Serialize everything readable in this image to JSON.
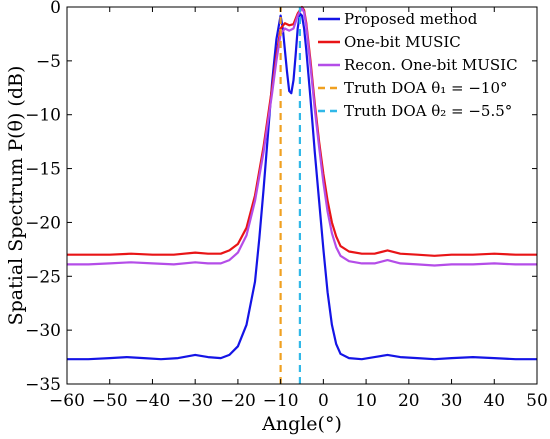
{
  "chart_data": {
    "type": "line",
    "xlabel": "Angle(°)",
    "ylabel": "Spatial Spectrum P(θ) (dB)",
    "xlim": [
      -60,
      50
    ],
    "ylim": [
      -35,
      0
    ],
    "xticks": [
      -60,
      -50,
      -40,
      -30,
      -20,
      -10,
      0,
      10,
      20,
      30,
      40,
      50
    ],
    "yticks": [
      0,
      -5,
      -10,
      -15,
      -20,
      -25,
      -30,
      -35
    ],
    "xtick_labels": [
      "−60",
      "−50",
      "−40",
      "−30",
      "−20",
      "−10",
      "0",
      "10",
      "20",
      "30",
      "40",
      "50"
    ],
    "ytick_labels": [
      "0",
      "−5",
      "−10",
      "−15",
      "−20",
      "−25",
      "−30",
      "−35"
    ],
    "grid": false,
    "legend_position": "top-right",
    "series": [
      {
        "name": "Proposed method",
        "color": "#1414e6",
        "style": "solid",
        "points": [
          [
            -60,
            -32.7
          ],
          [
            -55,
            -32.7
          ],
          [
            -50,
            -32.6
          ],
          [
            -46,
            -32.5
          ],
          [
            -42,
            -32.6
          ],
          [
            -38,
            -32.7
          ],
          [
            -34,
            -32.6
          ],
          [
            -30,
            -32.3
          ],
          [
            -27,
            -32.5
          ],
          [
            -24,
            -32.6
          ],
          [
            -22,
            -32.3
          ],
          [
            -20,
            -31.5
          ],
          [
            -18,
            -29.5
          ],
          [
            -16,
            -25.5
          ],
          [
            -15,
            -21.5
          ],
          [
            -14,
            -17
          ],
          [
            -13,
            -12
          ],
          [
            -12,
            -7
          ],
          [
            -11,
            -3
          ],
          [
            -10,
            -0.8
          ],
          [
            -9.5,
            -2
          ],
          [
            -9,
            -4
          ],
          [
            -8.5,
            -6
          ],
          [
            -8,
            -7.8
          ],
          [
            -7.5,
            -8
          ],
          [
            -7,
            -6.8
          ],
          [
            -6.5,
            -4.5
          ],
          [
            -6,
            -2
          ],
          [
            -5.5,
            -0.6
          ],
          [
            -5,
            -0.8
          ],
          [
            -4.5,
            -2
          ],
          [
            -4,
            -4
          ],
          [
            -3,
            -8.5
          ],
          [
            -2,
            -13.5
          ],
          [
            -1,
            -18
          ],
          [
            0,
            -22.5
          ],
          [
            1,
            -26.5
          ],
          [
            2,
            -29.5
          ],
          [
            3,
            -31.3
          ],
          [
            4,
            -32.2
          ],
          [
            6,
            -32.6
          ],
          [
            9,
            -32.7
          ],
          [
            12,
            -32.5
          ],
          [
            15,
            -32.3
          ],
          [
            18,
            -32.5
          ],
          [
            22,
            -32.6
          ],
          [
            26,
            -32.7
          ],
          [
            30,
            -32.6
          ],
          [
            35,
            -32.5
          ],
          [
            40,
            -32.6
          ],
          [
            45,
            -32.7
          ],
          [
            50,
            -32.7
          ]
        ]
      },
      {
        "name": "One-bit MUSIC",
        "color": "#e81416",
        "style": "solid",
        "points": [
          [
            -60,
            -23.0
          ],
          [
            -55,
            -23.0
          ],
          [
            -50,
            -23.0
          ],
          [
            -45,
            -22.9
          ],
          [
            -40,
            -23.0
          ],
          [
            -35,
            -23.0
          ],
          [
            -30,
            -22.8
          ],
          [
            -27,
            -22.9
          ],
          [
            -24,
            -22.9
          ],
          [
            -22,
            -22.6
          ],
          [
            -20,
            -22.0
          ],
          [
            -18,
            -20.5
          ],
          [
            -16,
            -17.5
          ],
          [
            -14,
            -13
          ],
          [
            -12,
            -7.5
          ],
          [
            -11,
            -4.5
          ],
          [
            -10,
            -2
          ],
          [
            -9,
            -1.5
          ],
          [
            -8,
            -1.7
          ],
          [
            -7,
            -1.6
          ],
          [
            -6,
            -0.6
          ],
          [
            -5,
            0
          ],
          [
            -4.5,
            -0.3
          ],
          [
            -4,
            -1.5
          ],
          [
            -3,
            -5
          ],
          [
            -2,
            -9
          ],
          [
            -1,
            -12.5
          ],
          [
            0,
            -15.5
          ],
          [
            1,
            -18
          ],
          [
            2,
            -20
          ],
          [
            3,
            -21.3
          ],
          [
            4,
            -22.2
          ],
          [
            6,
            -22.7
          ],
          [
            9,
            -22.9
          ],
          [
            12,
            -22.9
          ],
          [
            15,
            -22.6
          ],
          [
            18,
            -22.9
          ],
          [
            22,
            -23.0
          ],
          [
            26,
            -23.1
          ],
          [
            30,
            -23.0
          ],
          [
            35,
            -23.0
          ],
          [
            40,
            -22.9
          ],
          [
            45,
            -23.0
          ],
          [
            50,
            -23.0
          ]
        ]
      },
      {
        "name": "Recon. One-bit MUSIC",
        "color": "#b44de8",
        "style": "solid",
        "points": [
          [
            -60,
            -23.9
          ],
          [
            -55,
            -23.9
          ],
          [
            -50,
            -23.8
          ],
          [
            -45,
            -23.7
          ],
          [
            -40,
            -23.8
          ],
          [
            -35,
            -23.9
          ],
          [
            -30,
            -23.7
          ],
          [
            -27,
            -23.8
          ],
          [
            -24,
            -23.8
          ],
          [
            -22,
            -23.5
          ],
          [
            -20,
            -22.8
          ],
          [
            -18,
            -21.2
          ],
          [
            -16,
            -18
          ],
          [
            -14,
            -13.5
          ],
          [
            -12,
            -8
          ],
          [
            -11,
            -5
          ],
          [
            -10,
            -2.5
          ],
          [
            -9,
            -2
          ],
          [
            -8,
            -2.2
          ],
          [
            -7,
            -2.0
          ],
          [
            -6,
            -0.8
          ],
          [
            -5,
            -0.1
          ],
          [
            -4.5,
            -0.5
          ],
          [
            -4,
            -1.8
          ],
          [
            -3,
            -5.5
          ],
          [
            -2,
            -9.5
          ],
          [
            -1,
            -13
          ],
          [
            0,
            -16.3
          ],
          [
            1,
            -19
          ],
          [
            2,
            -21
          ],
          [
            3,
            -22.3
          ],
          [
            4,
            -23.1
          ],
          [
            6,
            -23.6
          ],
          [
            9,
            -23.8
          ],
          [
            12,
            -23.8
          ],
          [
            15,
            -23.5
          ],
          [
            18,
            -23.8
          ],
          [
            22,
            -23.9
          ],
          [
            26,
            -24.0
          ],
          [
            30,
            -23.9
          ],
          [
            35,
            -23.9
          ],
          [
            40,
            -23.8
          ],
          [
            45,
            -23.9
          ],
          [
            50,
            -23.9
          ]
        ]
      },
      {
        "name": "Truth DOA θ₁ = −10°",
        "color": "#f0a020",
        "style": "dashed",
        "points": [
          [
            -10,
            -35
          ],
          [
            -10,
            0
          ]
        ]
      },
      {
        "name": "Truth DOA θ₂ = −5.5°",
        "color": "#30b8e8",
        "style": "dashed",
        "points": [
          [
            -5.5,
            -35
          ],
          [
            -5.5,
            0
          ]
        ]
      }
    ]
  }
}
